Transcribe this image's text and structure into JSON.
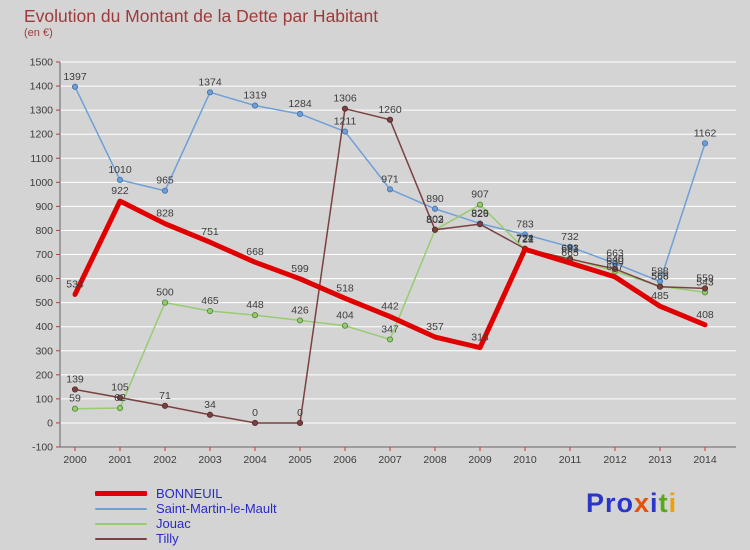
{
  "title": "Evolution du Montant de la Dette par Habitant",
  "subtitle": "(en €)",
  "colors": {
    "background": "#d4d4d4",
    "title": "#9e3a3a",
    "legend_text": "#2a2ac8",
    "axis": "#666666",
    "tick": "#cc3333",
    "grid": "#ffffff",
    "value_label": "#3d3d3d",
    "tick_label": "#3d3d3d"
  },
  "chart_data": {
    "type": "line",
    "title": "Evolution du Montant de la Dette par Habitant",
    "subtitle": "(en €)",
    "x": [
      2000,
      2001,
      2002,
      2003,
      2004,
      2005,
      2006,
      2007,
      2008,
      2009,
      2010,
      2011,
      2012,
      2013,
      2014
    ],
    "ylim": [
      -100,
      1500
    ],
    "ytick_step": 100,
    "grid": "horizontal",
    "legend_position": "bottom-left",
    "series": [
      {
        "name": "BONNEUIL",
        "color": "#e00000",
        "width": 5,
        "markers": false,
        "values": [
          534,
          922,
          828,
          751,
          668,
          599,
          518,
          442,
          357,
          313,
          722,
          665,
          607,
          485,
          408
        ]
      },
      {
        "name": "Saint-Martin-le-Mault",
        "color": "#6f9fd8",
        "marker_stroke": "#4a7ab0",
        "width": 1.5,
        "markers": true,
        "values": [
          1397,
          1010,
          965,
          1374,
          1319,
          1284,
          1211,
          971,
          890,
          829,
          783,
          732,
          663,
          588,
          1162
        ]
      },
      {
        "name": "Jouac",
        "color": "#97cc70",
        "marker_stroke": "#5a9040",
        "width": 1.5,
        "markers": true,
        "values": [
          59,
          62,
          500,
          465,
          448,
          426,
          404,
          347,
          802,
          907,
          721,
          683,
          630,
          568,
          543
        ]
      },
      {
        "name": "Tilly",
        "color": "#7b4141",
        "marker_stroke": "#5d2f2f",
        "width": 1.5,
        "markers": true,
        "values": [
          139,
          105,
          71,
          34,
          0,
          0,
          1306,
          1260,
          803,
          826,
          724,
          681,
          640,
          566,
          559
        ]
      }
    ]
  },
  "logo": {
    "text": "Proxiti",
    "segments": [
      {
        "text": "Pro",
        "color": "#2b35c8"
      },
      {
        "text": "x",
        "color": "#e8500a"
      },
      {
        "text": "i",
        "color": "#2b35c8"
      },
      {
        "text": "t",
        "color": "#58a818"
      },
      {
        "text": "i",
        "color": "#f0a000"
      }
    ]
  }
}
